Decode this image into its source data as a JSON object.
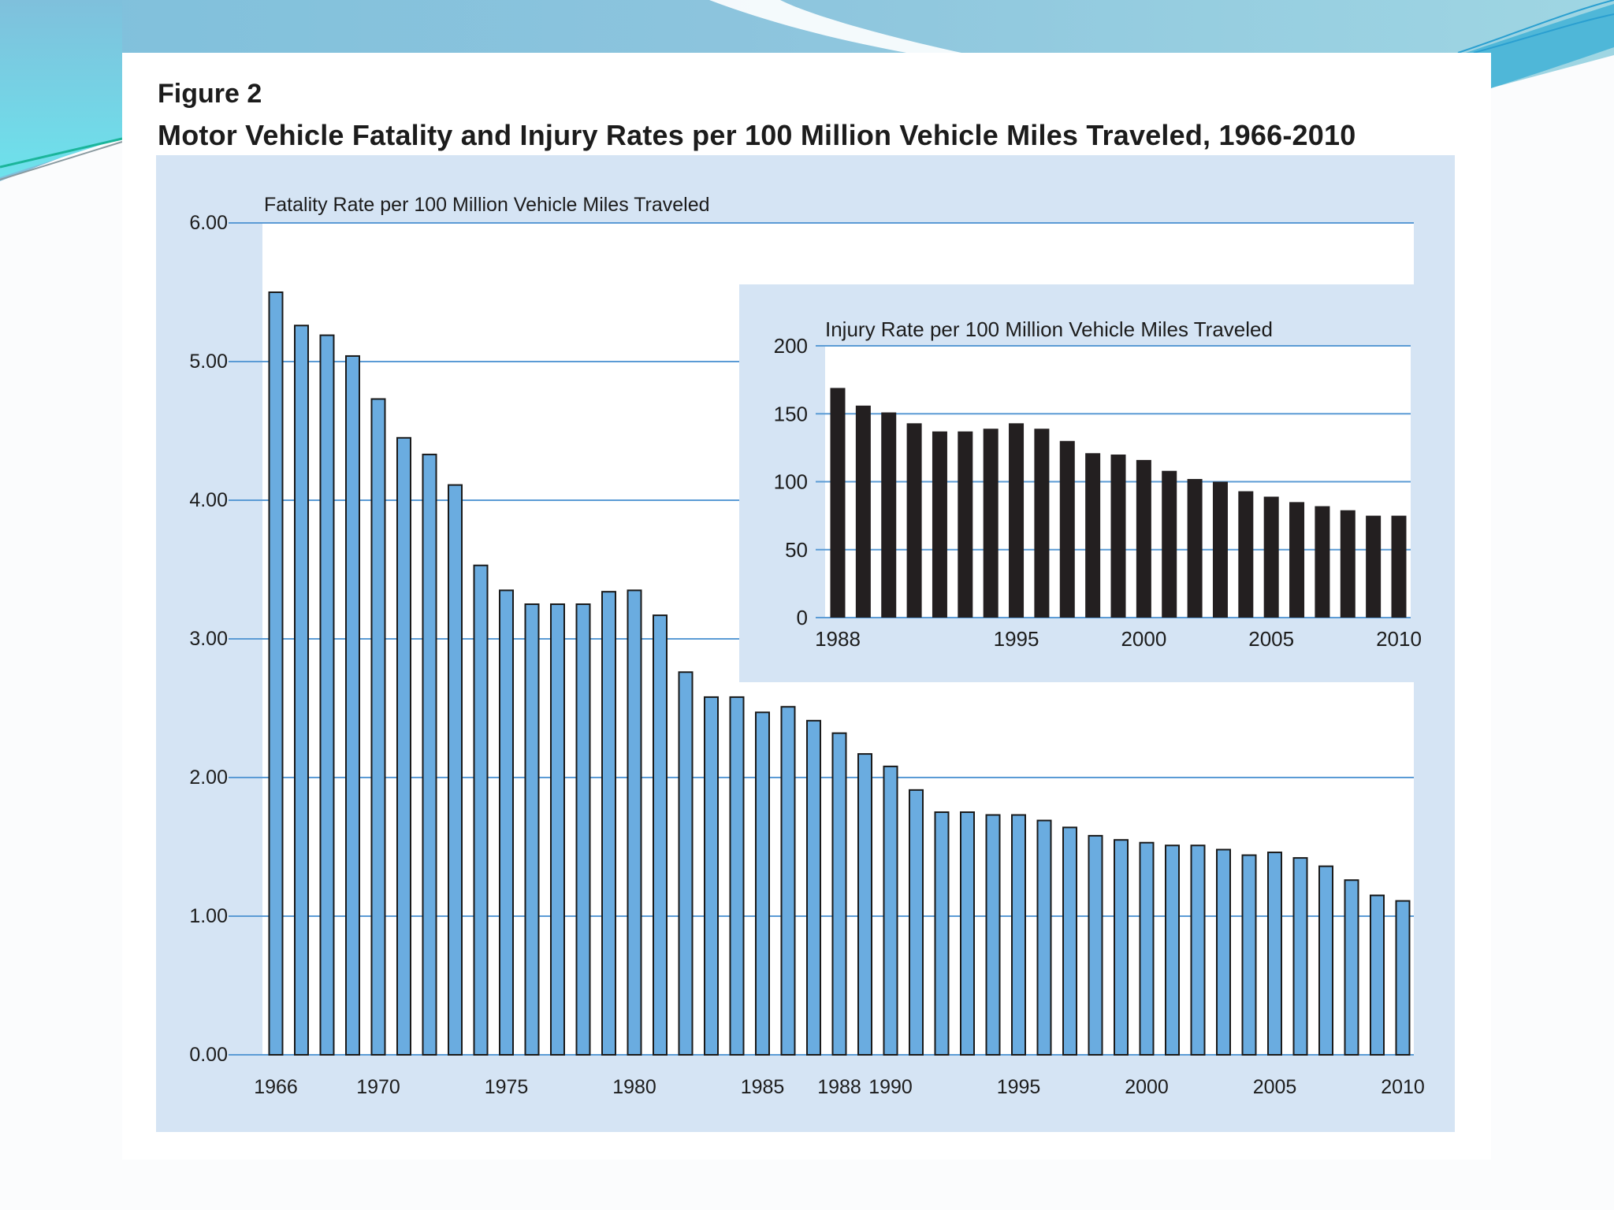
{
  "figure": {
    "label": "Figure 2",
    "title": "Motor Vehicle Fatality and Injury Rates per 100 Million Vehicle Miles Traveled, 1966-2010"
  },
  "colors": {
    "panel_bg": "#d5e4f4",
    "plot_bg": "#ffffff",
    "gridline": "#5b9bd5",
    "fatality_bar": "#6aace0",
    "bar_outline": "#1a1a1a",
    "injury_bar": "#231f20",
    "text": "#1c1c1c"
  },
  "chart_data": [
    {
      "type": "bar",
      "name": "fatality-rate",
      "title": "Fatality Rate per 100 Million Vehicle Miles Traveled",
      "xlabel": "",
      "ylabel": "",
      "ylim": [
        0,
        6
      ],
      "yticks": [
        "0.00",
        "1.00",
        "2.00",
        "3.00",
        "4.00",
        "5.00",
        "6.00"
      ],
      "grid": true,
      "xtick_labels": [
        "1966",
        "1970",
        "1975",
        "1980",
        "1985",
        "1988",
        "1990",
        "1995",
        "2000",
        "2005",
        "2010"
      ],
      "categories": [
        "1966",
        "1967",
        "1968",
        "1969",
        "1970",
        "1971",
        "1972",
        "1973",
        "1974",
        "1975",
        "1976",
        "1977",
        "1978",
        "1979",
        "1980",
        "1981",
        "1982",
        "1983",
        "1984",
        "1985",
        "1986",
        "1987",
        "1988",
        "1989",
        "1990",
        "1991",
        "1992",
        "1993",
        "1994",
        "1995",
        "1996",
        "1997",
        "1998",
        "1999",
        "2000",
        "2001",
        "2002",
        "2003",
        "2004",
        "2005",
        "2006",
        "2007",
        "2008",
        "2009",
        "2010"
      ],
      "values": [
        5.5,
        5.26,
        5.19,
        5.04,
        4.73,
        4.45,
        4.33,
        4.11,
        3.53,
        3.35,
        3.25,
        3.25,
        3.25,
        3.34,
        3.35,
        3.17,
        2.76,
        2.58,
        2.58,
        2.47,
        2.51,
        2.41,
        2.32,
        2.17,
        2.08,
        1.91,
        1.75,
        1.75,
        1.73,
        1.73,
        1.69,
        1.64,
        1.58,
        1.55,
        1.53,
        1.51,
        1.51,
        1.48,
        1.44,
        1.46,
        1.42,
        1.36,
        1.26,
        1.15,
        1.11
      ]
    },
    {
      "type": "bar",
      "name": "injury-rate",
      "title": "Injury Rate per 100 Million Vehicle Miles Traveled",
      "xlabel": "",
      "ylabel": "",
      "ylim": [
        0,
        200
      ],
      "yticks": [
        "0",
        "50",
        "100",
        "150",
        "200"
      ],
      "grid": true,
      "xtick_labels": [
        "1988",
        "1995",
        "2000",
        "2005",
        "2010"
      ],
      "categories": [
        "1988",
        "1989",
        "1990",
        "1991",
        "1992",
        "1993",
        "1994",
        "1995",
        "1996",
        "1997",
        "1998",
        "1999",
        "2000",
        "2001",
        "2002",
        "2003",
        "2004",
        "2005",
        "2006",
        "2007",
        "2008",
        "2009",
        "2010"
      ],
      "values": [
        169,
        156,
        151,
        143,
        137,
        137,
        139,
        143,
        139,
        130,
        121,
        120,
        116,
        108,
        102,
        100,
        93,
        89,
        85,
        82,
        79,
        75,
        75
      ]
    }
  ]
}
